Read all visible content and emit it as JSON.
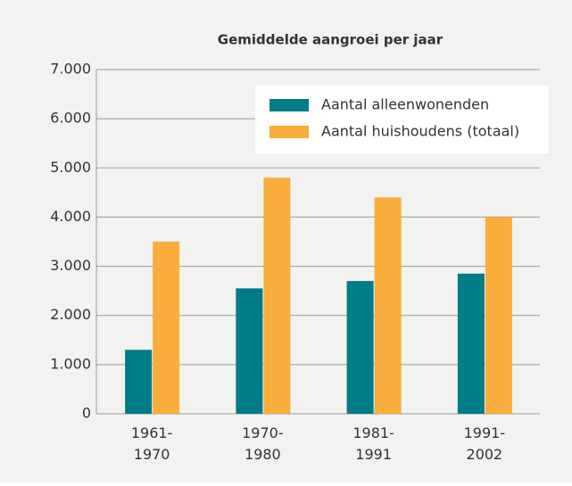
{
  "chart_data": {
    "type": "bar",
    "title": "Gemiddelde aangroei per jaar",
    "categories": [
      "1961-\n1970",
      "1970-\n1980",
      "1981-\n1991",
      "1991-\n2002"
    ],
    "series": [
      {
        "name": "Aantal alleenwonenden",
        "color": "#007b88",
        "values": [
          1300,
          2550,
          2700,
          2850
        ]
      },
      {
        "name": "Aantal huishoudens (totaal)",
        "color": "#f8ad3c",
        "values": [
          3500,
          4800,
          4400,
          4000
        ]
      }
    ],
    "ylim": [
      0,
      7000
    ],
    "yticks": [
      0,
      {
        "value": 1000,
        "label": "1.000"
      },
      {
        "value": 2000,
        "label": "2.000"
      },
      {
        "value": 3000,
        "label": "3.000"
      },
      {
        "value": 4000,
        "label": "4.000"
      },
      {
        "value": 5000,
        "label": "5.000"
      },
      {
        "value": 6000,
        "label": "6.000"
      },
      {
        "value": 7000,
        "label": "7.000"
      }
    ],
    "grid": true,
    "legend": "upper right"
  }
}
